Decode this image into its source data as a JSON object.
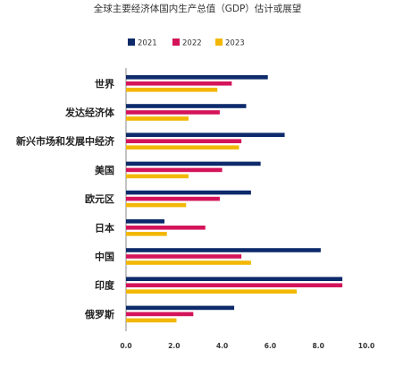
{
  "chart_data": {
    "type": "bar",
    "orientation": "horizontal",
    "title": "全球主要经济体国内生产总值（GDP）估计或展望",
    "xlabel": "",
    "ylabel": "",
    "xlim": [
      0,
      10
    ],
    "x_ticks": [
      "0.0",
      "2.0",
      "4.0",
      "6.0",
      "8.0",
      "10.0"
    ],
    "grid": false,
    "legend_position": "top",
    "categories": [
      "世界",
      "发达经济体",
      "新兴市场和发展中经济",
      "美国",
      "欧元区",
      "日本",
      "中国",
      "印度",
      "俄罗斯"
    ],
    "series": [
      {
        "name": "2021",
        "color": "#0d2a6b",
        "values": [
          5.9,
          5.0,
          6.6,
          5.6,
          5.2,
          1.6,
          8.1,
          9.0,
          4.5
        ]
      },
      {
        "name": "2022",
        "color": "#d4145a",
        "values": [
          4.4,
          3.9,
          4.8,
          4.0,
          3.9,
          3.3,
          4.8,
          9.0,
          2.8
        ]
      },
      {
        "name": "2023",
        "color": "#f2b705",
        "values": [
          3.8,
          2.6,
          4.7,
          2.6,
          2.5,
          1.7,
          5.2,
          7.1,
          2.1
        ]
      }
    ]
  }
}
